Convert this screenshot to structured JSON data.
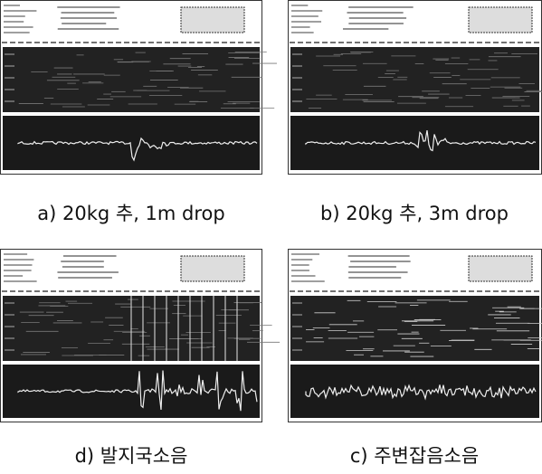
{
  "panels": [
    {
      "caption": "a) 20kg 추, 1m drop"
    },
    {
      "caption": "b) 20kg 추, 3m drop"
    },
    {
      "caption": "d) 발지국소음"
    },
    {
      "caption": "c) 주변잡음소음"
    }
  ]
}
